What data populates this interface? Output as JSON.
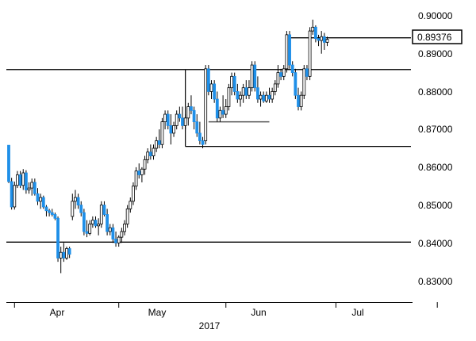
{
  "chart_data": {
    "type": "candlestick",
    "y_axis": {
      "position": "right",
      "ylim": [
        0.8255,
        0.902
      ],
      "ticks": [
        "0.90000",
        "0.89000",
        "0.88000",
        "0.87000",
        "0.86000",
        "0.85000",
        "0.84000",
        "0.83000"
      ],
      "tick_values": [
        0.9,
        0.89,
        0.88,
        0.87,
        0.86,
        0.85,
        0.84,
        0.83
      ]
    },
    "x_axis": {
      "month_labels": [
        "Apr",
        "May",
        "Jun",
        "Jul"
      ],
      "month_label_bar_index": [
        17,
        56,
        93,
        130
      ],
      "year_label": "2017",
      "tick_bar_index": [
        2,
        38,
        75,
        113,
        148
      ]
    },
    "current_price": {
      "label": "0.89376",
      "value": 0.89376
    },
    "colors": {
      "up": "#ffffff",
      "down": "#1f8fe8",
      "outline": "#000000",
      "line": "#000000"
    },
    "candles": [
      [
        0.8658,
        0.8658,
        0.8558,
        0.8562
      ],
      [
        0.8562,
        0.8572,
        0.8488,
        0.8495
      ],
      [
        0.8495,
        0.8562,
        0.8488,
        0.8552
      ],
      [
        0.8552,
        0.859,
        0.8545,
        0.858
      ],
      [
        0.858,
        0.859,
        0.8545,
        0.8552
      ],
      [
        0.8552,
        0.8595,
        0.854,
        0.8585
      ],
      [
        0.8585,
        0.8592,
        0.853,
        0.854
      ],
      [
        0.854,
        0.856,
        0.853,
        0.8545
      ],
      [
        0.8545,
        0.857,
        0.8525,
        0.856
      ],
      [
        0.856,
        0.857,
        0.8525,
        0.853
      ],
      [
        0.853,
        0.8545,
        0.85,
        0.851
      ],
      [
        0.851,
        0.853,
        0.849,
        0.852
      ],
      [
        0.852,
        0.8525,
        0.849,
        0.8495
      ],
      [
        0.8495,
        0.85,
        0.847,
        0.8485
      ],
      [
        0.8485,
        0.849,
        0.847,
        0.848
      ],
      [
        0.848,
        0.849,
        0.847,
        0.8475
      ],
      [
        0.8475,
        0.848,
        0.846,
        0.8465
      ],
      [
        0.8465,
        0.847,
        0.835,
        0.836
      ],
      [
        0.836,
        0.839,
        0.832,
        0.8375
      ],
      [
        0.8375,
        0.84,
        0.835,
        0.836
      ],
      [
        0.836,
        0.839,
        0.8355,
        0.8385
      ],
      [
        0.8385,
        0.839,
        0.836,
        0.837
      ],
      [
        0.847,
        0.853,
        0.846,
        0.851
      ],
      [
        0.851,
        0.854,
        0.849,
        0.852
      ],
      [
        0.852,
        0.853,
        0.849,
        0.85
      ],
      [
        0.85,
        0.851,
        0.847,
        0.848
      ],
      [
        0.848,
        0.849,
        0.842,
        0.843
      ],
      [
        0.843,
        0.846,
        0.8415,
        0.8425
      ],
      [
        0.8425,
        0.846,
        0.842,
        0.845
      ],
      [
        0.845,
        0.847,
        0.844,
        0.846
      ],
      [
        0.846,
        0.847,
        0.844,
        0.8445
      ],
      [
        0.8445,
        0.8465,
        0.842,
        0.845
      ],
      [
        0.845,
        0.851,
        0.844,
        0.85
      ],
      [
        0.85,
        0.851,
        0.847,
        0.8475
      ],
      [
        0.8475,
        0.849,
        0.842,
        0.843
      ],
      [
        0.843,
        0.845,
        0.842,
        0.844
      ],
      [
        0.844,
        0.845,
        0.84,
        0.841
      ],
      [
        0.841,
        0.843,
        0.839,
        0.84
      ],
      [
        0.84,
        0.842,
        0.839,
        0.8415
      ],
      [
        0.8415,
        0.844,
        0.84,
        0.843
      ],
      [
        0.843,
        0.846,
        0.842,
        0.845
      ],
      [
        0.845,
        0.85,
        0.844,
        0.849
      ],
      [
        0.849,
        0.852,
        0.848,
        0.851
      ],
      [
        0.851,
        0.856,
        0.85,
        0.855
      ],
      [
        0.855,
        0.86,
        0.854,
        0.859
      ],
      [
        0.859,
        0.861,
        0.857,
        0.858
      ],
      [
        0.858,
        0.86,
        0.856,
        0.8595
      ],
      [
        0.8595,
        0.863,
        0.858,
        0.862
      ],
      [
        0.862,
        0.865,
        0.861,
        0.864
      ],
      [
        0.864,
        0.866,
        0.862,
        0.863
      ],
      [
        0.863,
        0.866,
        0.862,
        0.865
      ],
      [
        0.865,
        0.868,
        0.864,
        0.867
      ],
      [
        0.867,
        0.87,
        0.865,
        0.866
      ],
      [
        0.866,
        0.873,
        0.865,
        0.872
      ],
      [
        0.872,
        0.875,
        0.87,
        0.874
      ],
      [
        0.874,
        0.875,
        0.87,
        0.871
      ],
      [
        0.871,
        0.874,
        0.866,
        0.869
      ],
      [
        0.869,
        0.872,
        0.868,
        0.871
      ],
      [
        0.871,
        0.875,
        0.87,
        0.874
      ],
      [
        0.874,
        0.876,
        0.872,
        0.873
      ],
      [
        0.873,
        0.876,
        0.87,
        0.871
      ],
      [
        0.871,
        0.874,
        0.87,
        0.873
      ],
      [
        0.873,
        0.877,
        0.871,
        0.876
      ],
      [
        0.876,
        0.879,
        0.874,
        0.875
      ],
      [
        0.875,
        0.876,
        0.87,
        0.872
      ],
      [
        0.872,
        0.874,
        0.868,
        0.869
      ],
      [
        0.869,
        0.872,
        0.866,
        0.867
      ],
      [
        0.867,
        0.868,
        0.865,
        0.866
      ],
      [
        0.867,
        0.887,
        0.866,
        0.886
      ],
      [
        0.886,
        0.887,
        0.879,
        0.88
      ],
      [
        0.88,
        0.883,
        0.878,
        0.882
      ],
      [
        0.882,
        0.883,
        0.877,
        0.878
      ],
      [
        0.878,
        0.88,
        0.872,
        0.873
      ],
      [
        0.873,
        0.876,
        0.872,
        0.875
      ],
      [
        0.875,
        0.879,
        0.873,
        0.874
      ],
      [
        0.874,
        0.878,
        0.873,
        0.876
      ],
      [
        0.876,
        0.882,
        0.875,
        0.881
      ],
      [
        0.881,
        0.885,
        0.879,
        0.884
      ],
      [
        0.884,
        0.885,
        0.879,
        0.88
      ],
      [
        0.88,
        0.882,
        0.877,
        0.878
      ],
      [
        0.878,
        0.88,
        0.876,
        0.879
      ],
      [
        0.879,
        0.882,
        0.877,
        0.881
      ],
      [
        0.881,
        0.883,
        0.878,
        0.879
      ],
      [
        0.879,
        0.883,
        0.878,
        0.881
      ],
      [
        0.881,
        0.888,
        0.88,
        0.887
      ],
      [
        0.887,
        0.888,
        0.88,
        0.881
      ],
      [
        0.881,
        0.884,
        0.877,
        0.878
      ],
      [
        0.878,
        0.88,
        0.876,
        0.879
      ],
      [
        0.879,
        0.88,
        0.877,
        0.8775
      ],
      [
        0.8775,
        0.88,
        0.877,
        0.879
      ],
      [
        0.879,
        0.881,
        0.877,
        0.878
      ],
      [
        0.878,
        0.881,
        0.877,
        0.88
      ],
      [
        0.88,
        0.883,
        0.879,
        0.882
      ],
      [
        0.882,
        0.887,
        0.881,
        0.885
      ],
      [
        0.885,
        0.886,
        0.883,
        0.884
      ],
      [
        0.884,
        0.887,
        0.883,
        0.886
      ],
      [
        0.886,
        0.896,
        0.885,
        0.895
      ],
      [
        0.895,
        0.896,
        0.886,
        0.887
      ],
      [
        0.887,
        0.888,
        0.884,
        0.885
      ],
      [
        0.885,
        0.886,
        0.878,
        0.879
      ],
      [
        0.879,
        0.881,
        0.875,
        0.876
      ],
      [
        0.876,
        0.88,
        0.875,
        0.879
      ],
      [
        0.879,
        0.887,
        0.878,
        0.886
      ],
      [
        0.886,
        0.887,
        0.883,
        0.884
      ],
      [
        0.884,
        0.897,
        0.883,
        0.896
      ],
      [
        0.896,
        0.899,
        0.895,
        0.897
      ],
      [
        0.897,
        0.8975,
        0.893,
        0.894
      ],
      [
        0.894,
        0.895,
        0.892,
        0.8935
      ],
      [
        0.8935,
        0.896,
        0.89,
        0.8945
      ],
      [
        0.8945,
        0.8955,
        0.891,
        0.893
      ],
      [
        0.893,
        0.8945,
        0.892,
        0.8938
      ]
    ],
    "horizontal_lines": [
      {
        "value": 0.8858,
        "from_index": 0,
        "to_index": "end"
      },
      {
        "value": 0.8402,
        "from_index": 0,
        "to_index": "end"
      },
      {
        "value": 0.8655,
        "from_index": 61,
        "to_index": "end"
      },
      {
        "value": 0.872,
        "from_index": 69,
        "to_index": 90
      },
      {
        "value": 0.8942,
        "from_index": 97,
        "to_index": "end"
      }
    ],
    "grid": false,
    "legend": false
  }
}
